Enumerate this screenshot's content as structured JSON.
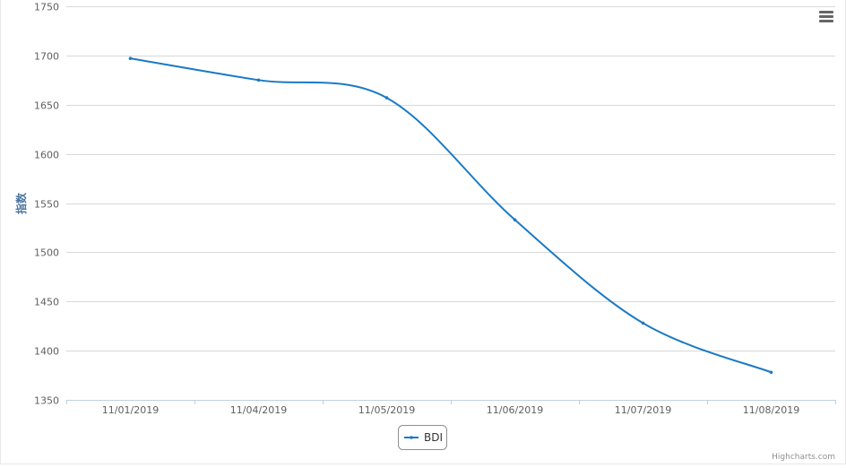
{
  "chart_data": {
    "type": "line",
    "title": "",
    "xlabel": "",
    "ylabel": "指数",
    "categories": [
      "11/01/2019",
      "11/04/2019",
      "11/05/2019",
      "11/06/2019",
      "11/07/2019",
      "11/08/2019"
    ],
    "series": [
      {
        "name": "BDI",
        "values": [
          1697,
          1675,
          1657,
          1533,
          1428,
          1378
        ],
        "color": "#1a7ac4"
      }
    ],
    "ylim": [
      1350,
      1750
    ],
    "yticks": [
      1350,
      1400,
      1450,
      1500,
      1550,
      1600,
      1650,
      1700,
      1750
    ],
    "grid": true,
    "legend": "bottom-center"
  },
  "credits": "Highcharts.com",
  "menu_icon": "hamburger-menu-icon"
}
